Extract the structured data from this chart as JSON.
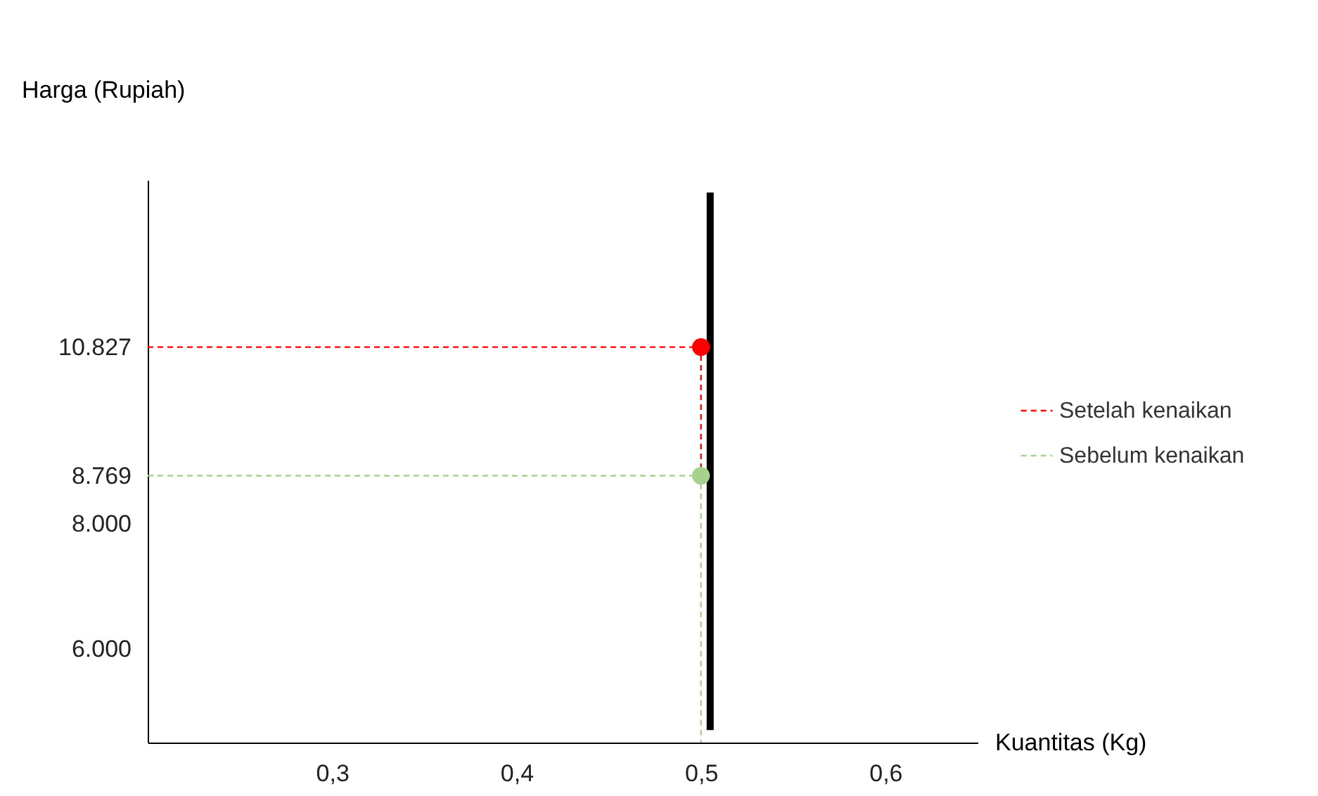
{
  "chart_data": {
    "type": "line",
    "xlabel": "Kuantitas (Kg)",
    "ylabel": "Harga (Rupiah)",
    "xlim": [
      0.2,
      0.65
    ],
    "ylim": [
      4500,
      13500
    ],
    "xticks": [
      {
        "value": 0.3,
        "label": "0,3"
      },
      {
        "value": 0.4,
        "label": "0,4"
      },
      {
        "value": 0.5,
        "label": "0,5"
      },
      {
        "value": 0.6,
        "label": "0,6"
      }
    ],
    "yticks": [
      {
        "value": 6000,
        "label": "6.000"
      },
      {
        "value": 8000,
        "label": "8.000"
      },
      {
        "value": 8769,
        "label": "8.769"
      },
      {
        "value": 10827,
        "label": "10.827"
      }
    ],
    "grid": false,
    "legend": "right",
    "series": [
      {
        "color": "#000000",
        "x": [
          0.505,
          0.505
        ],
        "values": [
          4700,
          13300
        ],
        "line_style": "solid"
      },
      {
        "type": "line",
        "name": "Setelah kenaikan",
        "color": "#ff0000",
        "x": [
          0.2,
          0.5,
          0.5
        ],
        "values": [
          10827,
          10827,
          8769
        ],
        "line_style": "dashed"
      },
      {
        "type": "line",
        "name": "Sebelum kenaikan",
        "color": "#a9d18e",
        "x": [
          0.2,
          0.5,
          0.5
        ],
        "values": [
          8769,
          8769,
          4500
        ],
        "line_style": "dashed"
      },
      {
        "type": "scatter",
        "marker": "circle",
        "color": "#ff0000",
        "x": [
          0.5
        ],
        "values": [
          10827
        ]
      },
      {
        "type": "scatter",
        "marker": "circle",
        "color": "#a9d18e",
        "x": [
          0.5
        ],
        "values": [
          8769
        ]
      }
    ]
  }
}
